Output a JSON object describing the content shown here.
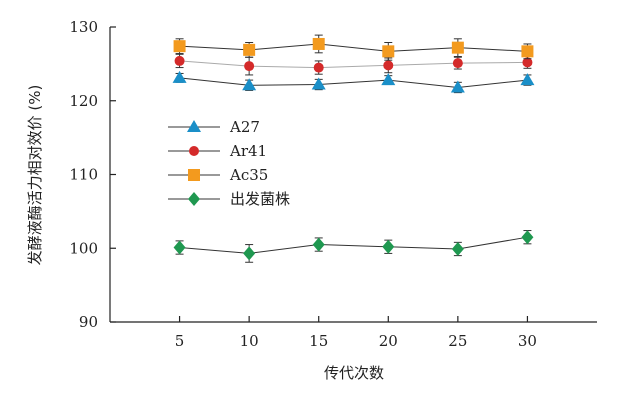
{
  "chart_data": {
    "type": "line",
    "xlabel": "传代次数",
    "ylabel": "发酵液酶活力相对效价 (%)",
    "x": [
      5,
      10,
      15,
      20,
      25,
      30
    ],
    "xlim": [
      0,
      35
    ],
    "ylim": [
      90,
      130
    ],
    "xticks": [
      5,
      10,
      15,
      20,
      25,
      30
    ],
    "yticks": [
      90,
      100,
      110,
      120,
      130
    ],
    "legend_position": "center-left",
    "series": [
      {
        "name": "A27",
        "marker": "triangle",
        "color": "#1a8fc8",
        "line_color": "#333333",
        "values": [
          123.1,
          122.1,
          122.2,
          122.8,
          121.8,
          122.8
        ],
        "errors": [
          0.6,
          0.7,
          0.7,
          0.6,
          0.7,
          0.7
        ]
      },
      {
        "name": "Ar41",
        "marker": "circle",
        "color": "#d42a2a",
        "line_color": "#aaaaaa",
        "values": [
          125.4,
          124.7,
          124.5,
          124.8,
          125.1,
          125.2
        ],
        "errors": [
          0.9,
          1.2,
          0.9,
          1.0,
          0.8,
          0.8
        ]
      },
      {
        "name": "Ac35",
        "marker": "square",
        "color": "#f39a1e",
        "line_color": "#333333",
        "values": [
          127.4,
          126.9,
          127.7,
          126.7,
          127.2,
          126.7
        ],
        "errors": [
          1.0,
          1.0,
          1.2,
          1.2,
          1.2,
          1.0
        ]
      },
      {
        "name": "出发菌株",
        "marker": "diamond",
        "color": "#1f9850",
        "line_color": "#333333",
        "values": [
          100.1,
          99.3,
          100.5,
          100.2,
          99.9,
          101.5
        ],
        "errors": [
          0.9,
          1.2,
          0.9,
          0.9,
          0.9,
          0.9
        ]
      }
    ]
  }
}
